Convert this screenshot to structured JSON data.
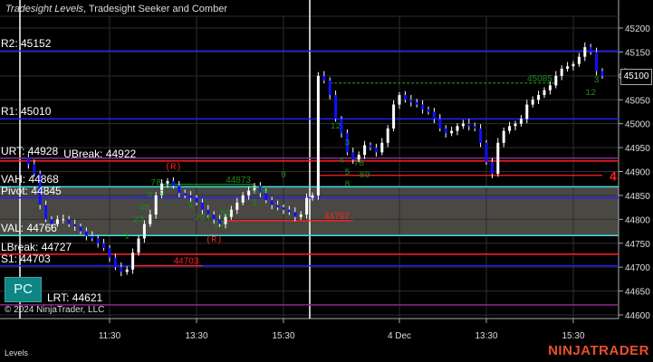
{
  "header": {
    "title_italic": "Tradesight Levels",
    "title_rest": ", Tradesight Seeker and Comber"
  },
  "levels": [
    {
      "label": "R2: 45152",
      "price": 45152,
      "color": "#1f1fff"
    },
    {
      "label": "R1: 45010",
      "price": 45010,
      "color": "#1f1fff"
    },
    {
      "label": "URT: 44928",
      "price": 44928,
      "color": "#8a2a8a"
    },
    {
      "label": "UBreak: 44922",
      "price": 44922,
      "color": "#ff2020"
    },
    {
      "label": "VAH: 44868",
      "price": 44868,
      "color": "#40e0e0"
    },
    {
      "label": "Pivot: 44845",
      "price": 44845,
      "color": "#1f1fff"
    },
    {
      "label": "VAL: 44766",
      "price": 44766,
      "color": "#40e0e0"
    },
    {
      "label": "LBreak: 44727",
      "price": 44727,
      "color": "#ff2020"
    },
    {
      "label": "S1: 44703",
      "price": 44703,
      "color": "#1f1fff"
    },
    {
      "label": "LRT: 44621",
      "price": 44621,
      "color": "#8a2a8a"
    }
  ],
  "pc_button": "PC",
  "copyright": "© 2024 NinjaTrader, LLC",
  "panel_label": "Levels",
  "brand": "NINJATRADER",
  "last_price": "45100",
  "colors": {
    "up": "#ffffff",
    "down": "#1010ff",
    "value_area": "#4a4843",
    "signal": "#1e8a1e",
    "alert": "#ff2020"
  },
  "chart_data": {
    "type": "candlestick",
    "yaxis": {
      "min": 44600,
      "max": 45200,
      "ticks": [
        45200,
        45150,
        45100,
        45050,
        45000,
        44950,
        44900,
        44850,
        44800,
        44750,
        44700,
        44650,
        44600
      ]
    },
    "xaxis": {
      "ticks": [
        {
          "label": "11:30",
          "bar": 15
        },
        {
          "label": "13:30",
          "bar": 30
        },
        {
          "label": "15:30",
          "bar": 45
        },
        {
          "label": "4 Dec",
          "bar": 65
        },
        {
          "label": "13:30",
          "bar": 80
        },
        {
          "label": "15:30",
          "bar": 95
        }
      ]
    },
    "session_breaks": [
      0,
      50
    ],
    "closes": [
      44930,
      44915,
      44895,
      44830,
      44800,
      44790,
      44800,
      44800,
      44790,
      44785,
      44775,
      44765,
      44760,
      44750,
      44740,
      44720,
      44700,
      44690,
      44695,
      44730,
      44760,
      44790,
      44810,
      44850,
      44875,
      44880,
      44870,
      44855,
      44850,
      44845,
      44835,
      44820,
      44810,
      44800,
      44790,
      44805,
      44820,
      44835,
      44850,
      44860,
      44870,
      44855,
      44840,
      44830,
      44825,
      44820,
      44815,
      44805,
      44810,
      44845,
      44850,
      45100,
      45090,
      45060,
      45010,
      44980,
      44940,
      44925,
      44935,
      44955,
      44950,
      44940,
      44960,
      44990,
      45040,
      45060,
      45050,
      45045,
      45040,
      45030,
      45025,
      45010,
      44990,
      44980,
      44985,
      44995,
      45000,
      44995,
      44990,
      44960,
      44920,
      44895,
      44960,
      44985,
      44995,
      45000,
      45010,
      45040,
      45050,
      45060,
      45070,
      45080,
      45100,
      45115,
      45120,
      45125,
      45140,
      45160,
      45150,
      45110,
      45100
    ],
    "segments": [
      {
        "label": "44703",
        "price": 44703,
        "from": 19,
        "to": 31,
        "color": "#ff2020",
        "dash": false
      },
      {
        "label": "44797",
        "price": 44797,
        "from": 35,
        "to": 57,
        "color": "#ff2020",
        "dash": false
      },
      {
        "label": "44873",
        "price": 44873,
        "from": 24,
        "to": 40,
        "color": "#1e8a1e",
        "dash": false
      },
      {
        "label": "45085",
        "price": 45085,
        "from": 53,
        "to": 92,
        "color": "#1e8a1e",
        "dash": true
      },
      {
        "label": "4",
        "price": 44892,
        "from": 51,
        "to": 100,
        "color": "#ff2020",
        "dash": false
      }
    ],
    "annotations": [
      {
        "text": "(R)",
        "bar": 26,
        "price": 44905,
        "color": "#ff2020"
      },
      {
        "text": "(R)",
        "bar": 33,
        "price": 44752,
        "color": "#ff2020"
      },
      {
        "text": "1",
        "bar": 18,
        "price": 44760,
        "color": "#1e8a1e"
      },
      {
        "text": "23",
        "bar": 20,
        "price": 44795,
        "color": "#1e8a1e"
      },
      {
        "text": "45",
        "bar": 21,
        "price": 44820,
        "color": "#1e8a1e"
      },
      {
        "text": "6",
        "bar": 22,
        "price": 44835,
        "color": "#1e8a1e"
      },
      {
        "text": "78",
        "bar": 23,
        "price": 44860,
        "color": "#1e8a1e"
      },
      {
        "text": "9",
        "bar": 24,
        "price": 44875,
        "color": "#1e8a1e"
      },
      {
        "text": "1",
        "bar": 29,
        "price": 44825,
        "color": "#1e8a1e"
      },
      {
        "text": "234",
        "bar": 31,
        "price": 44810,
        "color": "#1e8a1e"
      },
      {
        "text": "67",
        "bar": 34,
        "price": 44785,
        "color": "#1e8a1e"
      },
      {
        "text": "89",
        "bar": 35,
        "price": 44770,
        "color": "#1e8a1e"
      },
      {
        "text": "1",
        "bar": 40,
        "price": 44830,
        "color": "#1e8a1e"
      },
      {
        "text": "234",
        "bar": 41,
        "price": 44848,
        "color": "#1e8a1e"
      },
      {
        "text": "9",
        "bar": 45,
        "price": 44888,
        "color": "#1e8a1e"
      },
      {
        "text": "12",
        "bar": 54,
        "price": 44990,
        "color": "#1e8a1e"
      },
      {
        "text": "3",
        "bar": 56,
        "price": 44955,
        "color": "#1e8a1e"
      },
      {
        "text": "4",
        "bar": 55,
        "price": 44918,
        "color": "#1e8a1e"
      },
      {
        "text": "5",
        "bar": 56,
        "price": 44905,
        "color": "#1e8a1e"
      },
      {
        "text": "78",
        "bar": 58,
        "price": 44912,
        "color": "#1e8a1e"
      },
      {
        "text": "89",
        "bar": 59,
        "price": 44895,
        "color": "#1e8a1e"
      },
      {
        "text": "8",
        "bar": 56,
        "price": 44888,
        "color": "#1e8a1e"
      },
      {
        "text": "12",
        "bar": 98,
        "price": 45060,
        "color": "#1e8a1e"
      },
      {
        "text": "3",
        "bar": 99,
        "price": 45075,
        "color": "#1e8a1e"
      }
    ]
  }
}
